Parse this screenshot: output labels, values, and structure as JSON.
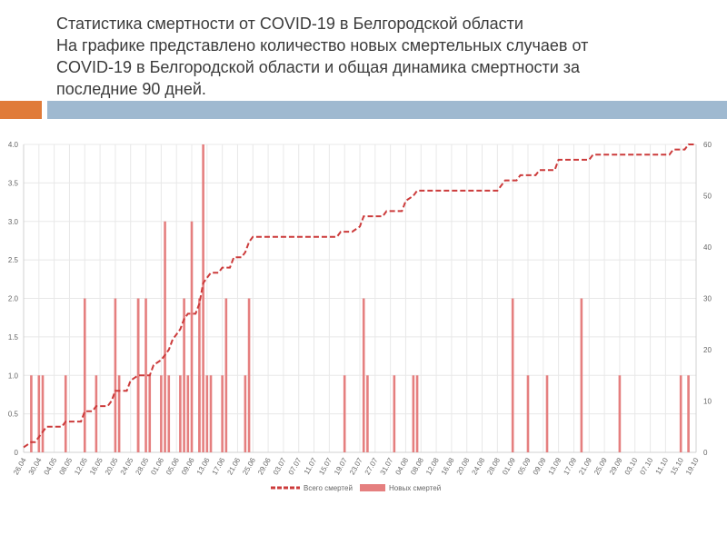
{
  "title_lines": [
    "Статистика смертности от COVID-19 в Белгородской области",
    "На графике представлено количество новых смертельных случаев от",
    "COVID-19 в Белгородской области и общая динамика смертности за",
    "последние 90 дней."
  ],
  "colors": {
    "accent_orange": "#e07b39",
    "accent_blue": "#9fb9d0",
    "bar": "#e57f7f",
    "line": "#cc3b3b",
    "grid": "#e8e8e8",
    "axis_text": "#666666"
  },
  "chart_data": {
    "type": "bar+line",
    "title": "",
    "x": [
      "26.04",
      "30.04",
      "04.05",
      "08.05",
      "12.05",
      "16.05",
      "20.05",
      "24.05",
      "28.05",
      "01.06",
      "05.06",
      "09.06",
      "13.06",
      "17.06",
      "21.06",
      "25.06",
      "29.06",
      "03.07",
      "07.07",
      "11.07",
      "15.07",
      "19.07",
      "23.07",
      "27.07",
      "31.07",
      "04.08",
      "08.08",
      "12.08",
      "16.08",
      "20.08",
      "24.08",
      "28.08",
      "01.09",
      "05.09",
      "09.09",
      "13.09",
      "17.09",
      "21.09",
      "25.09",
      "29.09",
      "03.10",
      "07.10",
      "11.10",
      "15.10",
      "19.10"
    ],
    "y_left_ticks": [
      "0",
      "0.5",
      "1.0",
      "1.5",
      "2.0",
      "2.5",
      "3.0",
      "3.5",
      "4.0"
    ],
    "y_right_ticks": [
      "0",
      "10",
      "20",
      "30",
      "40",
      "50",
      "60"
    ],
    "ylim_left": [
      0,
      4
    ],
    "ylim_right": [
      0,
      60
    ],
    "start_day_label": "26.04",
    "total_days": 176,
    "series": [
      {
        "name": "Новых смертей",
        "kind": "bar",
        "axis": "left",
        "points": [
          [
            2,
            1
          ],
          [
            4,
            1
          ],
          [
            5,
            1
          ],
          [
            11,
            1
          ],
          [
            16,
            2
          ],
          [
            19,
            1
          ],
          [
            24,
            2
          ],
          [
            25,
            1
          ],
          [
            30,
            1
          ],
          [
            30,
            2
          ],
          [
            30,
            2
          ],
          [
            32,
            2
          ],
          [
            33,
            1
          ],
          [
            36,
            1
          ],
          [
            37,
            3
          ],
          [
            38,
            1
          ],
          [
            41,
            1
          ],
          [
            42,
            2
          ],
          [
            43,
            1
          ],
          [
            44,
            3
          ],
          [
            46,
            2
          ],
          [
            46,
            1
          ],
          [
            47,
            4
          ],
          [
            48,
            1
          ],
          [
            49,
            1
          ],
          [
            52,
            1
          ],
          [
            53,
            2
          ],
          [
            58,
            1
          ],
          [
            59,
            2
          ],
          [
            84,
            1
          ],
          [
            89,
            2
          ],
          [
            90,
            1
          ],
          [
            97,
            1
          ],
          [
            102,
            1
          ],
          [
            103,
            1
          ],
          [
            128,
            2
          ],
          [
            132,
            1
          ],
          [
            137,
            1
          ],
          [
            146,
            2
          ],
          [
            156,
            1
          ],
          [
            172,
            1
          ],
          [
            174,
            1
          ]
        ]
      },
      {
        "name": "Всего смертей",
        "kind": "line",
        "axis": "right",
        "style": "dashed",
        "points": [
          [
            0,
            1
          ],
          [
            2,
            2
          ],
          [
            3,
            2
          ],
          [
            4,
            3
          ],
          [
            5,
            4
          ],
          [
            6,
            5
          ],
          [
            10,
            5
          ],
          [
            11,
            6
          ],
          [
            15,
            6
          ],
          [
            16,
            8
          ],
          [
            18,
            8
          ],
          [
            19,
            9
          ],
          [
            22,
            9
          ],
          [
            23,
            10
          ],
          [
            24,
            12
          ],
          [
            27,
            12
          ],
          [
            28,
            14
          ],
          [
            30,
            15
          ],
          [
            33,
            15
          ],
          [
            34,
            17
          ],
          [
            36,
            18
          ],
          [
            37,
            19
          ],
          [
            38,
            20
          ],
          [
            39,
            22
          ],
          [
            40,
            23
          ],
          [
            41,
            24
          ],
          [
            42,
            26
          ],
          [
            43,
            27
          ],
          [
            45,
            27
          ],
          [
            46,
            29
          ],
          [
            47,
            33
          ],
          [
            48,
            34
          ],
          [
            49,
            35
          ],
          [
            51,
            35
          ],
          [
            52,
            36
          ],
          [
            54,
            36
          ],
          [
            55,
            38
          ],
          [
            57,
            38
          ],
          [
            58,
            39
          ],
          [
            59,
            41
          ],
          [
            60,
            42
          ],
          [
            82,
            42
          ],
          [
            83,
            43
          ],
          [
            86,
            43
          ],
          [
            88,
            44
          ],
          [
            89,
            46
          ],
          [
            94,
            46
          ],
          [
            95,
            47
          ],
          [
            99,
            47
          ],
          [
            100,
            49
          ],
          [
            102,
            50
          ],
          [
            103,
            51
          ],
          [
            124,
            51
          ],
          [
            126,
            53
          ],
          [
            129,
            53
          ],
          [
            130,
            54
          ],
          [
            134,
            54
          ],
          [
            135,
            55
          ],
          [
            139,
            55
          ],
          [
            140,
            57
          ],
          [
            148,
            57
          ],
          [
            149,
            58
          ],
          [
            169,
            58
          ],
          [
            170,
            59
          ],
          [
            173,
            59
          ],
          [
            174,
            60
          ],
          [
            176,
            60
          ]
        ]
      }
    ],
    "legend": [
      "Всего смертей",
      "Новых смертей"
    ],
    "legend_position": "bottom"
  }
}
